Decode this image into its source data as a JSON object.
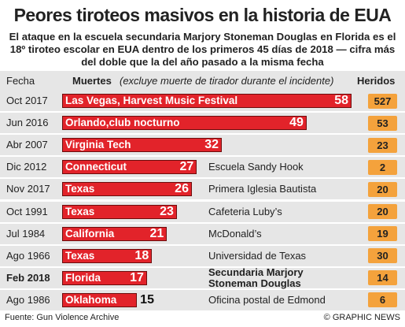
{
  "chart_data": {
    "type": "bar",
    "title": "Peores tiroteos masivos en la historia de EUA",
    "subtitle": "El ataque en la escuela secundaria Marjory Stoneman Douglas en Florida es el 18º tiroteo escolar en EUA dentro de los primeros 45 días de 2018 — cifra más del doble que la del año pasado a la misma fecha",
    "header_date": "Fecha",
    "header_deaths": "Muertes",
    "header_deaths_note": "(excluye muerte de tirador durante el incidente)",
    "header_injured": "Heridos",
    "dates": [
      "Oct 2017",
      "Jun 2016",
      "Abr 2007",
      "Dic 2012",
      "Nov 2017",
      "Oct 1991",
      "Jul 1984",
      "Ago 1966",
      "Feb 2018",
      "Ago 1986"
    ],
    "categories": [
      "Las Vegas, Harvest Music Festival",
      "Orlando,club nocturno",
      "Virginia Tech",
      "Connecticut",
      "Texas",
      "Texas",
      "California",
      "Texas",
      "Florida",
      "Oklahoma"
    ],
    "details": [
      null,
      null,
      null,
      "Escuela Sandy Hook",
      "Primera Iglesia Bautista",
      "Cafeteria Luby’s",
      "McDonald’s",
      "Universidad de Texas",
      "Secundaria Marjory Stoneman Douglas",
      "Oficina postal de Edmond"
    ],
    "values": [
      58,
      49,
      32,
      27,
      26,
      23,
      21,
      18,
      17,
      15
    ],
    "injured": [
      527,
      53,
      23,
      2,
      20,
      20,
      19,
      30,
      14,
      6
    ],
    "xlim": [
      0,
      58
    ],
    "highlight": 8,
    "color": "#e2232a",
    "injured_color": "#f4a23c",
    "source": "Fuente: Gun Violence Archive",
    "credit": "© GRAPHIC NEWS"
  }
}
